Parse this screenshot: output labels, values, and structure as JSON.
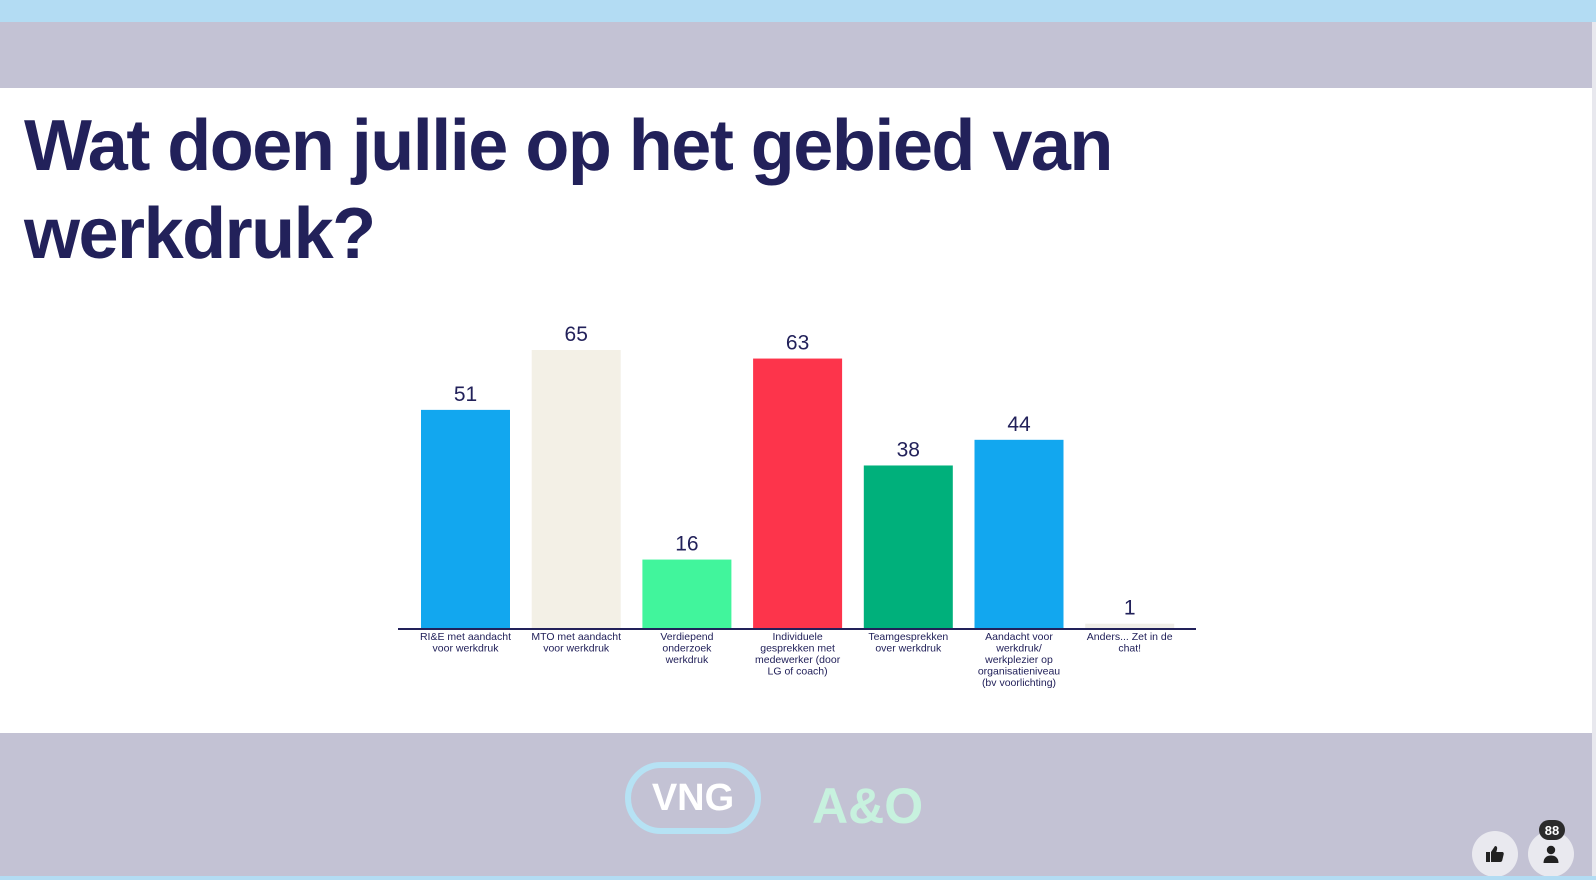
{
  "slide": {
    "title": "Wat doen jullie op het gebied van werkdruk?"
  },
  "chart_data": {
    "type": "bar",
    "title": "",
    "xlabel": "",
    "ylabel": "",
    "ylim": [
      0,
      65
    ],
    "grid": false,
    "categories": [
      "RI&E met aandacht voor werkdruk",
      "MTO met aandacht voor werkdruk",
      "Verdiepend onderzoek werkdruk",
      "Individuele gesprekken met medewerker (door LG of coach)",
      "Teamgesprekken over werkdruk",
      "Aandacht voor werkdruk/ werkplezier op organisatieniveau (bv voorlichting)",
      "Anders... Zet in de chat!"
    ],
    "category_lines": [
      [
        "RI&E met aandacht",
        "voor werkdruk"
      ],
      [
        "MTO met aandacht",
        "voor werkdruk"
      ],
      [
        "Verdiepend",
        "onderzoek",
        "werkdruk"
      ],
      [
        "Individuele",
        "gesprekken met",
        "medewerker (door",
        "LG of coach)"
      ],
      [
        "Teamgesprekken",
        "over werkdruk"
      ],
      [
        "Aandacht voor",
        "werkdruk/",
        "werkplezier op",
        "organisatieniveau",
        "(bv voorlichting)"
      ],
      [
        "Anders... Zet in de",
        "chat!"
      ]
    ],
    "values": [
      51,
      65,
      16,
      63,
      38,
      44,
      1
    ],
    "colors": [
      "#12a7ef",
      "#f3f0e6",
      "#41f59c",
      "#fd344b",
      "#00b07b",
      "#12a7ef",
      "#f0eee8"
    ],
    "axis_color": "#22215a",
    "label_color": "#22215a"
  },
  "footer": {
    "logo_vng": "VNG",
    "logo_ao": "A&O",
    "participant_count": "88",
    "like_icon": "thumbs-up-icon",
    "participants_icon": "person-icon"
  }
}
